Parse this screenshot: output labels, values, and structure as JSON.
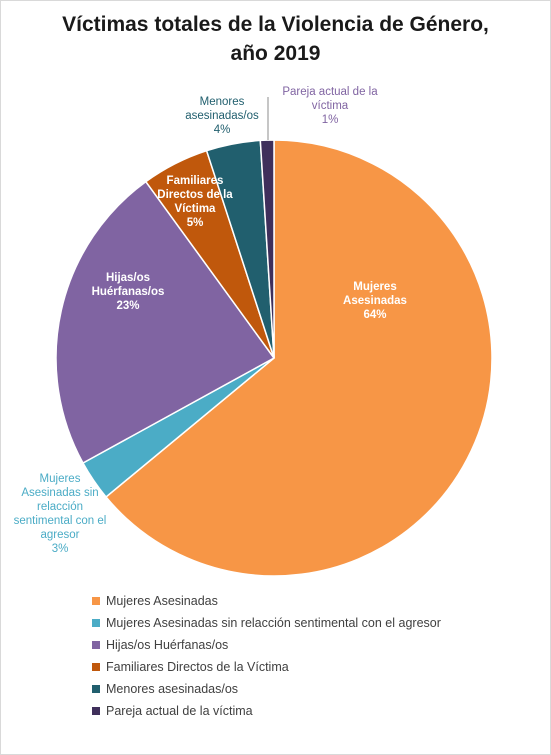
{
  "chart_data": {
    "type": "pie",
    "title_lines": [
      "Víctimas totales de la Violencia de Género,",
      "año 2019"
    ],
    "slices": [
      {
        "name": "Mujeres Asesinadas",
        "value": 64,
        "label_lines": [
          "Mujeres",
          "Asesinadas",
          "64%"
        ],
        "color": "#F79646",
        "label_color": "#ffffff"
      },
      {
        "name": "Mujeres Asesinadas sin relacción sentimental con el agresor",
        "value": 3,
        "label_lines": [
          "Mujeres",
          "Asesinadas  sin",
          "relacción",
          "sentimental con el",
          "agresor",
          "3%"
        ],
        "color": "#4BACC6",
        "label_color": "#4BACC6"
      },
      {
        "name": "Hijas/os Huérfanas/os",
        "value": 23,
        "label_lines": [
          "Hijas/os",
          "Huérfanas/os",
          "23%"
        ],
        "color": "#8064A2",
        "label_color": "#ffffff"
      },
      {
        "name": "Familiares Directos de la Víctima",
        "value": 5,
        "label_lines": [
          "Familiares",
          "Directos de la",
          "Víctima",
          "5%"
        ],
        "color": "#C0580C",
        "label_color": "#ffffff"
      },
      {
        "name": "Menores asesinadas/os",
        "value": 4,
        "label_lines": [
          "Menores",
          "asesinadas/os",
          "4%"
        ],
        "color": "#215F6E",
        "label_color": "#215F6E"
      },
      {
        "name": "Pareja actual de la víctima",
        "value": 1,
        "label_lines": [
          "Pareja actual  de la",
          "víctima",
          "1%"
        ],
        "color": "#3F2F5B",
        "label_color": "#8064A2"
      }
    ],
    "legend_position": "bottom-left"
  }
}
